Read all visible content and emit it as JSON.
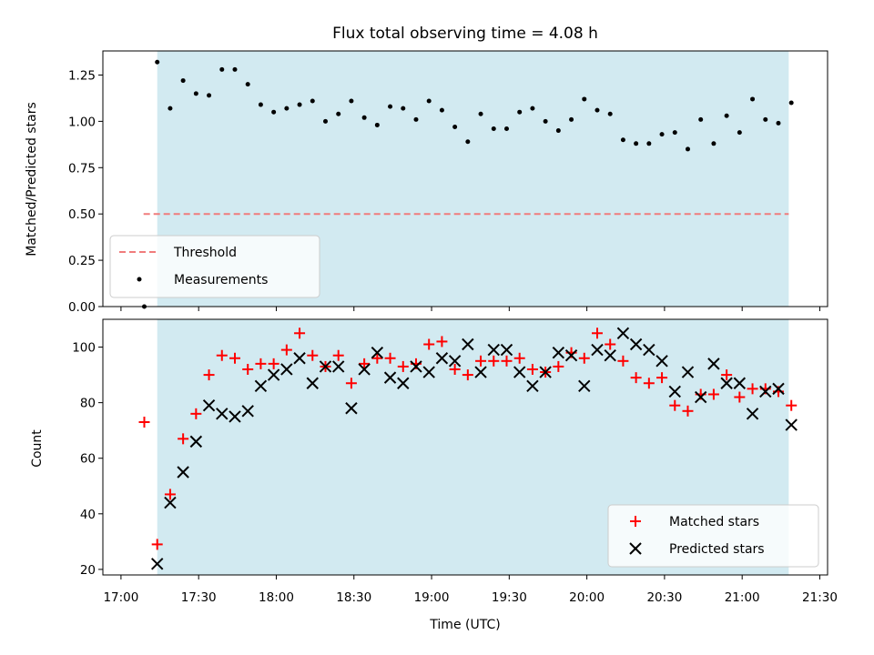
{
  "chart_data": [
    {
      "type": "scatter",
      "title": "Flux total observing time = 4.08 h",
      "xlabel": "",
      "ylabel": "Matched/Predicted stars",
      "ylim": [
        0,
        1.38
      ],
      "yticks": [
        "0.00",
        "0.25",
        "0.50",
        "0.75",
        "1.00",
        "1.25"
      ],
      "observing_window": [
        "17:14",
        "21:18"
      ],
      "threshold": {
        "name": "Threshold",
        "value": 0.5,
        "color": "#f07c7c"
      },
      "series": [
        {
          "name": "Measurements",
          "color": "#000000",
          "points": [
            [
              "17:09",
              0.0
            ],
            [
              "17:14",
              1.32
            ],
            [
              "17:19",
              1.07
            ],
            [
              "17:24",
              1.22
            ],
            [
              "17:29",
              1.15
            ],
            [
              "17:34",
              1.14
            ],
            [
              "17:39",
              1.28
            ],
            [
              "17:44",
              1.28
            ],
            [
              "17:49",
              1.2
            ],
            [
              "17:54",
              1.09
            ],
            [
              "17:59",
              1.05
            ],
            [
              "18:04",
              1.07
            ],
            [
              "18:09",
              1.09
            ],
            [
              "18:14",
              1.11
            ],
            [
              "18:19",
              1.0
            ],
            [
              "18:24",
              1.04
            ],
            [
              "18:29",
              1.11
            ],
            [
              "18:34",
              1.02
            ],
            [
              "18:39",
              0.98
            ],
            [
              "18:44",
              1.08
            ],
            [
              "18:49",
              1.07
            ],
            [
              "18:54",
              1.01
            ],
            [
              "18:59",
              1.11
            ],
            [
              "19:04",
              1.06
            ],
            [
              "19:09",
              0.97
            ],
            [
              "19:14",
              0.89
            ],
            [
              "19:19",
              1.04
            ],
            [
              "19:24",
              0.96
            ],
            [
              "19:29",
              0.96
            ],
            [
              "19:34",
              1.05
            ],
            [
              "19:39",
              1.07
            ],
            [
              "19:44",
              1.0
            ],
            [
              "19:49",
              0.95
            ],
            [
              "19:54",
              1.01
            ],
            [
              "19:59",
              1.12
            ],
            [
              "20:04",
              1.06
            ],
            [
              "20:09",
              1.04
            ],
            [
              "20:14",
              0.9
            ],
            [
              "20:19",
              0.88
            ],
            [
              "20:24",
              0.88
            ],
            [
              "20:29",
              0.93
            ],
            [
              "20:34",
              0.94
            ],
            [
              "20:39",
              0.85
            ],
            [
              "20:44",
              1.01
            ],
            [
              "20:49",
              0.88
            ],
            [
              "20:54",
              1.03
            ],
            [
              "20:59",
              0.94
            ],
            [
              "21:04",
              1.12
            ],
            [
              "21:09",
              1.01
            ],
            [
              "21:14",
              0.99
            ],
            [
              "21:19",
              1.1
            ]
          ]
        }
      ],
      "legend": {
        "placement": "lower-left",
        "entries": [
          "Threshold",
          "Measurements"
        ]
      }
    },
    {
      "type": "scatter",
      "title": "",
      "xlabel": "Time (UTC)",
      "ylabel": "Count",
      "ylim": [
        18,
        110
      ],
      "yticks": [
        "20",
        "40",
        "60",
        "80",
        "100"
      ],
      "xlim": [
        "17:00",
        "21:30"
      ],
      "xticks": [
        "17:00",
        "17:30",
        "18:00",
        "18:30",
        "19:00",
        "19:30",
        "20:00",
        "20:30",
        "21:00",
        "21:30"
      ],
      "observing_window": [
        "17:14",
        "21:18"
      ],
      "series": [
        {
          "name": "Matched stars",
          "color": "#ff0000",
          "marker": "+",
          "points": [
            [
              "17:09",
              73
            ],
            [
              "17:14",
              29
            ],
            [
              "17:19",
              47
            ],
            [
              "17:24",
              67
            ],
            [
              "17:29",
              76
            ],
            [
              "17:34",
              90
            ],
            [
              "17:39",
              97
            ],
            [
              "17:44",
              96
            ],
            [
              "17:49",
              92
            ],
            [
              "17:54",
              94
            ],
            [
              "17:59",
              94
            ],
            [
              "18:04",
              99
            ],
            [
              "18:09",
              105
            ],
            [
              "18:14",
              97
            ],
            [
              "18:19",
              93
            ],
            [
              "18:24",
              97
            ],
            [
              "18:29",
              87
            ],
            [
              "18:34",
              94
            ],
            [
              "18:39",
              96
            ],
            [
              "18:44",
              96
            ],
            [
              "18:49",
              93
            ],
            [
              "18:54",
              94
            ],
            [
              "18:59",
              101
            ],
            [
              "19:04",
              102
            ],
            [
              "19:09",
              92
            ],
            [
              "19:14",
              90
            ],
            [
              "19:19",
              95
            ],
            [
              "19:24",
              95
            ],
            [
              "19:29",
              95
            ],
            [
              "19:34",
              96
            ],
            [
              "19:39",
              92
            ],
            [
              "19:44",
              91
            ],
            [
              "19:49",
              93
            ],
            [
              "19:54",
              98
            ],
            [
              "19:59",
              96
            ],
            [
              "20:04",
              105
            ],
            [
              "20:09",
              101
            ],
            [
              "20:14",
              95
            ],
            [
              "20:19",
              89
            ],
            [
              "20:24",
              87
            ],
            [
              "20:29",
              89
            ],
            [
              "20:34",
              79
            ],
            [
              "20:39",
              77
            ],
            [
              "20:44",
              83
            ],
            [
              "20:49",
              83
            ],
            [
              "20:54",
              90
            ],
            [
              "20:59",
              82
            ],
            [
              "21:04",
              85
            ],
            [
              "21:09",
              85
            ],
            [
              "21:14",
              84
            ],
            [
              "21:19",
              79
            ]
          ]
        },
        {
          "name": "Predicted stars",
          "color": "#000000",
          "marker": "x",
          "points": [
            [
              "17:14",
              22
            ],
            [
              "17:19",
              44
            ],
            [
              "17:24",
              55
            ],
            [
              "17:29",
              66
            ],
            [
              "17:34",
              79
            ],
            [
              "17:39",
              76
            ],
            [
              "17:44",
              75
            ],
            [
              "17:49",
              77
            ],
            [
              "17:54",
              86
            ],
            [
              "17:59",
              90
            ],
            [
              "18:04",
              92
            ],
            [
              "18:09",
              96
            ],
            [
              "18:14",
              87
            ],
            [
              "18:19",
              93
            ],
            [
              "18:24",
              93
            ],
            [
              "18:29",
              78
            ],
            [
              "18:34",
              92
            ],
            [
              "18:39",
              98
            ],
            [
              "18:44",
              89
            ],
            [
              "18:49",
              87
            ],
            [
              "18:54",
              93
            ],
            [
              "18:59",
              91
            ],
            [
              "19:04",
              96
            ],
            [
              "19:09",
              95
            ],
            [
              "19:14",
              101
            ],
            [
              "19:19",
              91
            ],
            [
              "19:24",
              99
            ],
            [
              "19:29",
              99
            ],
            [
              "19:34",
              91
            ],
            [
              "19:39",
              86
            ],
            [
              "19:44",
              91
            ],
            [
              "19:49",
              98
            ],
            [
              "19:54",
              97
            ],
            [
              "19:59",
              86
            ],
            [
              "20:04",
              99
            ],
            [
              "20:09",
              97
            ],
            [
              "20:14",
              105
            ],
            [
              "20:19",
              101
            ],
            [
              "20:24",
              99
            ],
            [
              "20:29",
              95
            ],
            [
              "20:34",
              84
            ],
            [
              "20:39",
              91
            ],
            [
              "20:44",
              82
            ],
            [
              "20:49",
              94
            ],
            [
              "20:54",
              87
            ],
            [
              "20:59",
              87
            ],
            [
              "21:04",
              76
            ],
            [
              "21:09",
              84
            ],
            [
              "21:14",
              85
            ],
            [
              "21:19",
              72
            ]
          ]
        }
      ],
      "legend": {
        "placement": "lower-right",
        "entries": [
          "Matched stars",
          "Predicted stars"
        ]
      }
    }
  ],
  "colors": {
    "shade": "#add8e6",
    "threshold": "#f07c7c",
    "matched": "#ff0000",
    "predicted": "#000000"
  }
}
